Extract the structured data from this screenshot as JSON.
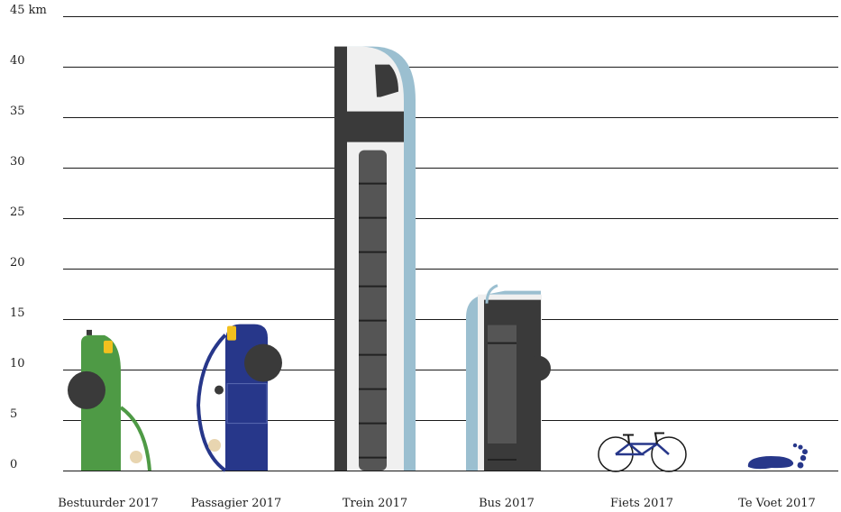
{
  "chart_data": {
    "type": "bar",
    "title": "",
    "xlabel": "",
    "ylabel": "",
    "ylim": [
      0,
      45
    ],
    "yticks": [
      {
        "value": 0,
        "label": "0"
      },
      {
        "value": 5,
        "label": "5"
      },
      {
        "value": 10,
        "label": "10"
      },
      {
        "value": 15,
        "label": "15"
      },
      {
        "value": 20,
        "label": "20"
      },
      {
        "value": 25,
        "label": "25"
      },
      {
        "value": 30,
        "label": "30"
      },
      {
        "value": 35,
        "label": "35"
      },
      {
        "value": 40,
        "label": "40"
      },
      {
        "value": 45,
        "label": "45 km"
      }
    ],
    "grid": true,
    "categories": [
      "Bestuurder 2017",
      "Passagier 2017",
      "Trein 2017",
      "Bus 2017",
      "Fiets 2017",
      "Te Voet 2017"
    ],
    "values": [
      13.4,
      14.5,
      42,
      17.8,
      3.7,
      1.6
    ],
    "colors": {
      "car_driver": "#4e9a45",
      "car_passenger": "#27378a",
      "train_body": "#f0f0f0",
      "train_blue": "#9bbfd0",
      "bus_blue": "#9bbfd0",
      "dark": "#3a3a3a",
      "bike_blue": "#27378a",
      "foot_blue": "#27378a",
      "accent_yellow": "#f2c01e"
    },
    "icons": [
      "car-driver-icon",
      "car-passenger-icon",
      "train-icon",
      "bus-icon",
      "bicycle-icon",
      "footprint-icon"
    ]
  }
}
